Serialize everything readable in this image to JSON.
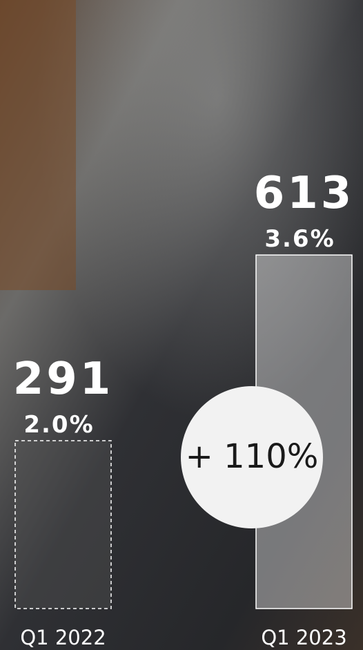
{
  "chart_data": {
    "type": "bar",
    "categories": [
      "Q1 2022",
      "Q1 2023"
    ],
    "values": [
      291,
      613
    ],
    "shares": [
      2.0,
      3.6
    ],
    "share_labels": [
      "2.0%",
      "3.6%"
    ],
    "annotation": "+ 110%"
  }
}
